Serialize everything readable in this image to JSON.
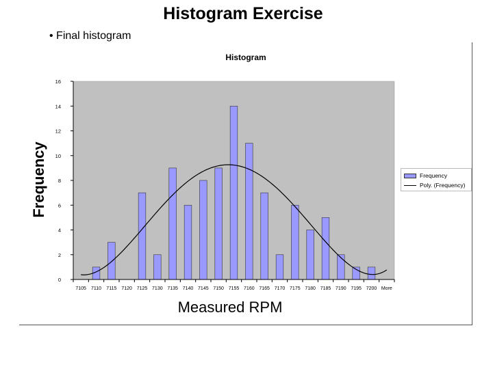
{
  "slide": {
    "title": "Histogram Exercise",
    "bullet": "• Final histogram"
  },
  "chart_data": {
    "type": "bar",
    "title": "Histogram",
    "xlabel": "Measured RPM",
    "ylabel": "Frequency",
    "ylim": [
      0,
      16
    ],
    "yticks": [
      0,
      2,
      4,
      6,
      8,
      10,
      12,
      14,
      16
    ],
    "categories": [
      "7105",
      "7110",
      "7115",
      "7120",
      "7125",
      "7130",
      "7135",
      "7140",
      "7145",
      "7150",
      "7155",
      "7160",
      "7165",
      "7170",
      "7175",
      "7180",
      "7185",
      "7190",
      "7195",
      "7200",
      "More"
    ],
    "series": [
      {
        "name": "Frequency",
        "values": [
          0,
          1,
          3,
          0,
          7,
          2,
          9,
          6,
          8,
          9,
          14,
          11,
          7,
          2,
          6,
          4,
          5,
          2,
          1,
          1,
          0
        ],
        "color": "#9999ff"
      },
      {
        "name": "Poly. (Frequency)",
        "type": "trendline",
        "color": "#000000"
      }
    ],
    "plot_background": "#c0c0c0",
    "legend_position": "right",
    "grid": false
  }
}
